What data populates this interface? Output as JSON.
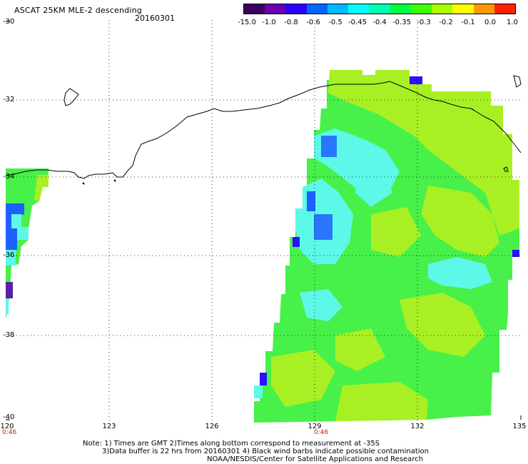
{
  "header": {
    "title": "ASCAT 25KM MLE-2 descending",
    "date": "20160301"
  },
  "colorbar": {
    "labels": [
      "-15.0",
      "-1.0",
      "-0.8",
      "-0.6",
      "-0.5",
      "-0.45",
      "-0.4",
      "-0.35",
      "-0.3",
      "-0.2",
      "-0.1",
      "0.0",
      "1.0"
    ],
    "colors": [
      "#3a0060",
      "#6a00b0",
      "#2a00ff",
      "#0066ff",
      "#00b8ff",
      "#00ffff",
      "#00ffb0",
      "#00ff40",
      "#40ff00",
      "#a8ff00",
      "#ffff00",
      "#ff9900",
      "#ff2200"
    ]
  },
  "axes": {
    "lat_labels": [
      "-30",
      "-32",
      "-34",
      "-36",
      "-38",
      "-40"
    ],
    "lon_labels": [
      "120",
      "123",
      "126",
      "129",
      "132",
      "135"
    ],
    "time_labels": [
      "0:46",
      "0:46"
    ]
  },
  "map": {
    "grid": true,
    "ocean_color": "#ffffff",
    "fill_green": "#48f04a",
    "fill_lime": "#a8f024",
    "fill_cyan": "#5ef8e8",
    "fill_blue": "#1e60ff",
    "fill_purple": "#5a20a0"
  },
  "notes": {
    "line1": "Note: 1) Times are GMT 2)Times along bottom correspond to measurement at -35S",
    "line2": "3)Data buffer is 22 hrs from 20160301 4) Black wind barbs indicate possible contamination",
    "line3": "NOAA/NESDIS/Center for Satellite Applications and Research"
  }
}
